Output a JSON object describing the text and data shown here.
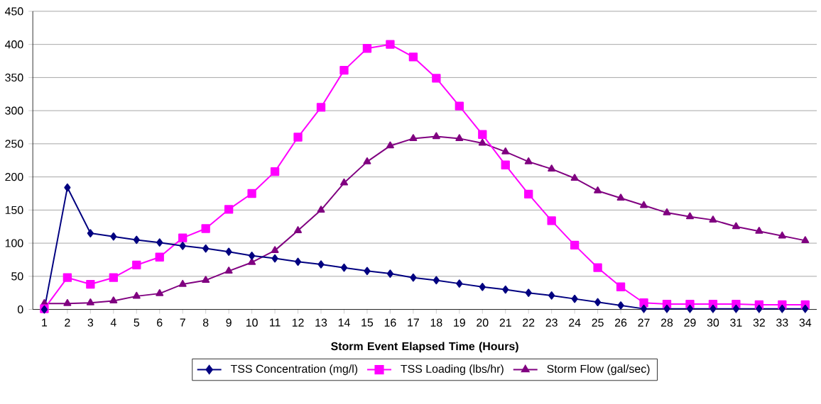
{
  "chart_data": {
    "type": "line",
    "xlabel": "Storm Event Elapsed Time (Hours)",
    "categories": [
      "1",
      "2",
      "3",
      "4",
      "5",
      "6",
      "7",
      "8",
      "9",
      "10",
      "11",
      "12",
      "13",
      "14",
      "15",
      "16",
      "17",
      "18",
      "19",
      "20",
      "21",
      "22",
      "23",
      "24",
      "25",
      "26",
      "27",
      "28",
      "29",
      "30",
      "31",
      "32",
      "33",
      "34"
    ],
    "series": [
      {
        "name": "TSS Concentration (mg/l)",
        "color": "#000080",
        "marker": "diamond",
        "values": [
          0,
          184,
          115,
          110,
          105,
          101,
          96,
          92,
          87,
          81,
          77,
          72,
          68,
          63,
          58,
          54,
          48,
          44,
          39,
          34,
          30,
          25,
          21,
          16,
          11,
          6,
          1,
          1,
          1,
          1,
          1,
          1,
          1,
          1
        ]
      },
      {
        "name": "TSS Loading (lbs/hr)",
        "color": "#ff00ff",
        "marker": "square",
        "values": [
          1,
          48,
          38,
          48,
          67,
          79,
          108,
          122,
          151,
          175,
          208,
          260,
          305,
          361,
          394,
          400,
          381,
          349,
          307,
          264,
          218,
          174,
          134,
          97,
          63,
          34,
          10,
          8,
          8,
          8,
          8,
          7,
          7,
          7
        ]
      },
      {
        "name": "Storm Flow  (gal/sec)",
        "color": "#800080",
        "marker": "triangle",
        "values": [
          9,
          9,
          10,
          13,
          20,
          24,
          38,
          44,
          58,
          71,
          89,
          119,
          150,
          191,
          223,
          247,
          258,
          261,
          258,
          251,
          238,
          223,
          212,
          198,
          179,
          168,
          157,
          146,
          140,
          135,
          125,
          118,
          111,
          104
        ]
      }
    ],
    "ylim": [
      0,
      450
    ],
    "yticks": [
      0,
      50,
      100,
      150,
      200,
      250,
      300,
      350,
      400,
      450
    ],
    "grid": "y",
    "legend": "bottom",
    "line_style": "solid"
  }
}
